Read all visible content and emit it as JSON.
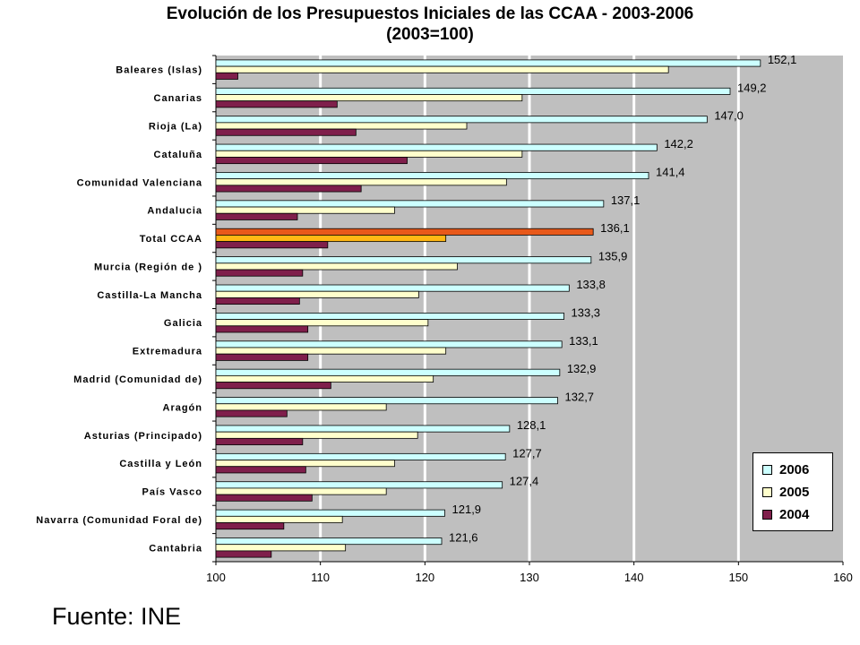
{
  "title_line1": "Evolución de los Presupuestos Iniciales de las CCAA - 2003-2006",
  "title_line2": "(2003=100)",
  "source": "Fuente: INE",
  "colors": {
    "s2006": "#CCFFFF",
    "s2005": "#FFFFCC",
    "s2004": "#7F1F4B",
    "highlight2006": "#E8591A",
    "highlight2005": "#FFB814",
    "plot_bg": "#BFBFBF",
    "grid": "#FFFFFF"
  },
  "chart_data": {
    "type": "bar",
    "orientation": "horizontal",
    "title": "Evolución de los Presupuestos Iniciales de las CCAA - 2003-2006 (2003=100)",
    "xlim": [
      100,
      160
    ],
    "x_ticks": [
      100,
      110,
      120,
      130,
      140,
      150,
      160
    ],
    "grid": true,
    "legend_position": "bottom-right",
    "highlight_category": "Total CCAA",
    "categories": [
      "Baleares (Islas)",
      "Canarias",
      "Rioja (La)",
      "Cataluña",
      "Comunidad Valenciana",
      "Andalucia",
      "Total CCAA",
      "Murcia (Región de )",
      "Castilla-La Mancha",
      "Galicia",
      "Extremadura",
      "Madrid (Comunidad de)",
      "Aragón",
      "Asturias (Principado)",
      "Castilla y León",
      "País Vasco",
      "Navarra (Comunidad Foral de)",
      "Cantabria"
    ],
    "series": [
      {
        "name": "2006",
        "values": [
          152.1,
          149.2,
          147.0,
          142.2,
          141.4,
          137.1,
          136.1,
          135.9,
          133.8,
          133.3,
          133.1,
          132.9,
          132.7,
          128.1,
          127.7,
          127.4,
          121.9,
          121.6
        ],
        "value_labels": [
          "152,1",
          "149,2",
          "147,0",
          "142,2",
          "141,4",
          "137,1",
          "136,1",
          "135,9",
          "133,8",
          "133,3",
          "133,1",
          "132,9",
          "132,7",
          "128,1",
          "127,7",
          "127,4",
          "121,9",
          "121,6"
        ]
      },
      {
        "name": "2005",
        "values": [
          143.3,
          129.3,
          124.0,
          129.3,
          127.8,
          117.1,
          122.0,
          123.1,
          119.4,
          120.3,
          122.0,
          120.8,
          116.3,
          119.3,
          117.1,
          116.3,
          112.1,
          112.4
        ]
      },
      {
        "name": "2004",
        "values": [
          102.1,
          111.6,
          113.4,
          118.3,
          113.9,
          107.8,
          110.7,
          108.3,
          108.0,
          108.8,
          108.8,
          111.0,
          106.8,
          108.3,
          108.6,
          109.2,
          106.5,
          105.3
        ]
      }
    ]
  }
}
